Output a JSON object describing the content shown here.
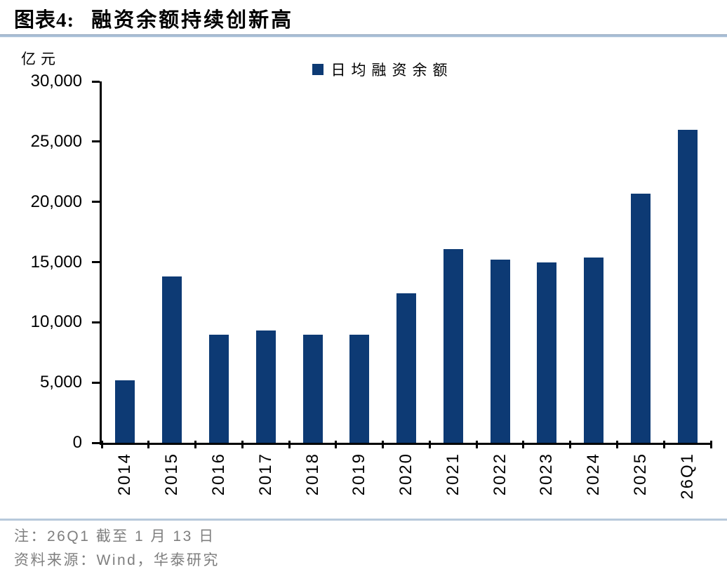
{
  "header": {
    "title_prefix": "图表4:",
    "title": "融资余额持续创新高"
  },
  "chart": {
    "unit_label": "亿元",
    "legend_label": "日均融资余额"
  },
  "chart_data": {
    "type": "bar",
    "title": "融资余额持续创新高",
    "ylabel": "亿元",
    "xlabel": "",
    "legend": [
      "日均融资余额"
    ],
    "legend_position": "top-center",
    "grid": false,
    "categories": [
      "2014",
      "2015",
      "2016",
      "2017",
      "2018",
      "2019",
      "2020",
      "2021",
      "2022",
      "2023",
      "2024",
      "2025",
      "26Q1"
    ],
    "values": [
      5200,
      13800,
      9000,
      9300,
      9000,
      9000,
      12400,
      16100,
      15200,
      15000,
      15400,
      20700,
      26000
    ],
    "ylim": [
      0,
      30000
    ],
    "ytick_step": 5000,
    "ytick_labels": [
      "0",
      "5,000",
      "10,000",
      "15,000",
      "20,000",
      "25,000",
      "30,000"
    ],
    "bar_color": "#0d3a74"
  },
  "theme": {
    "bar_color": "#0d3a74",
    "axis_color": "#000000",
    "title_rule_color": "#aec3da",
    "footer_rule_color": "#b7c9db",
    "footnote_color": "#7f7f7f"
  },
  "footer": {
    "note": "注：26Q1 截至 1 月 13 日",
    "source": "资料来源：Wind，华泰研究"
  }
}
